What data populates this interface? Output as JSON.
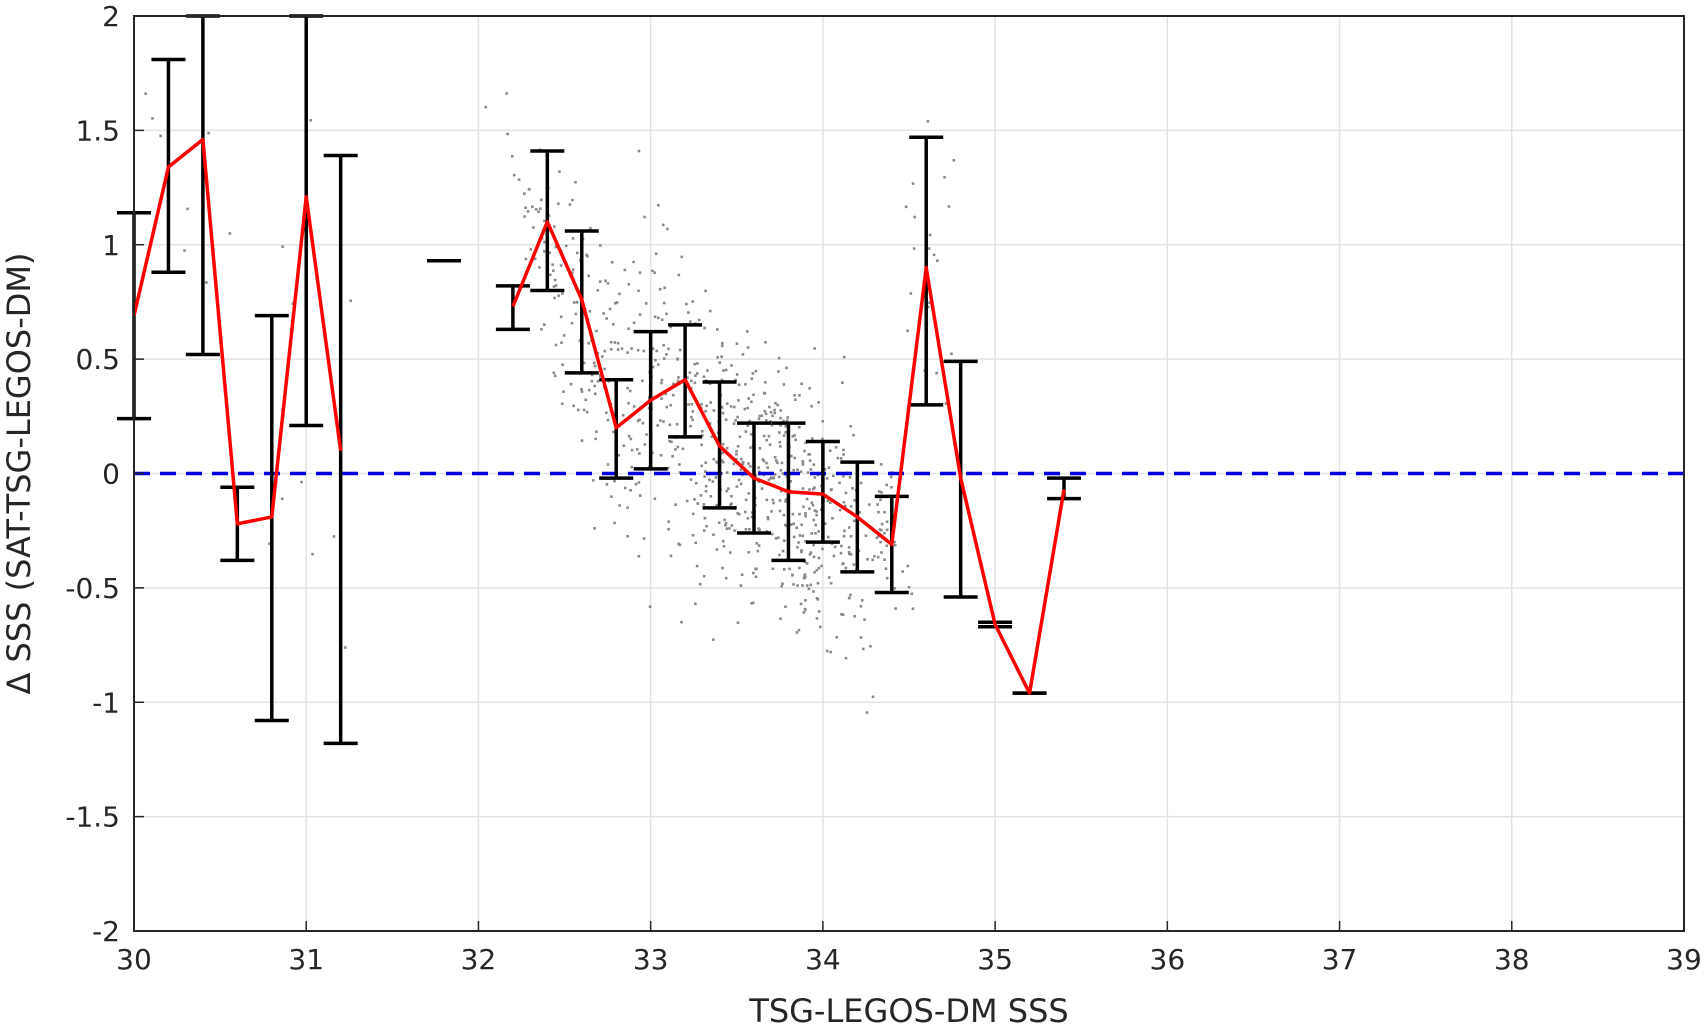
{
  "chart_data": {
    "type": "line",
    "title": "",
    "xlabel": "TSG-LEGOS-DM SSS",
    "ylabel": "Δ SSS (SAT-TSG-LEGOS-DM)",
    "xlim": [
      30,
      39
    ],
    "ylim": [
      -2,
      2
    ],
    "xticks": [
      30,
      31,
      32,
      33,
      34,
      35,
      36,
      37,
      38,
      39
    ],
    "xtick_labels": [
      "30",
      "31",
      "32",
      "33",
      "34",
      "35",
      "36",
      "37",
      "38",
      "39"
    ],
    "yticks": [
      -2,
      -1.5,
      -1,
      -0.5,
      0,
      0.5,
      1,
      1.5,
      2
    ],
    "ytick_labels": [
      "-2",
      "-1.5",
      "-1",
      "-0.5",
      "0",
      "0.5",
      "1",
      "1.5",
      "2"
    ],
    "grid": true,
    "colors": {
      "mean_line": "#ff0000",
      "error_bars": "#000000",
      "scatter": "#8a8a8a",
      "zero_line": "#0000e0",
      "grid": "#e3e3e3",
      "axis": "#262626"
    },
    "reference_line": {
      "y": 0,
      "style": "dashed"
    },
    "mean_line": [
      [
        30.0,
        0.69
      ],
      [
        30.2,
        1.34
      ],
      [
        30.4,
        1.46
      ],
      [
        30.6,
        -0.22
      ],
      [
        30.8,
        -0.19
      ],
      [
        31.0,
        1.21
      ],
      [
        31.2,
        0.1
      ],
      [
        32.2,
        0.73
      ],
      [
        32.4,
        1.1
      ],
      [
        32.6,
        0.76
      ],
      [
        32.8,
        0.2
      ],
      [
        33.0,
        0.32
      ],
      [
        33.2,
        0.41
      ],
      [
        33.4,
        0.12
      ],
      [
        33.6,
        -0.02
      ],
      [
        33.8,
        -0.08
      ],
      [
        34.0,
        -0.09
      ],
      [
        34.2,
        -0.19
      ],
      [
        34.4,
        -0.31
      ],
      [
        34.6,
        0.9
      ],
      [
        34.8,
        -0.02
      ],
      [
        35.0,
        -0.66
      ],
      [
        35.2,
        -0.96
      ],
      [
        35.4,
        -0.07
      ]
    ],
    "error_bars": [
      {
        "x": 30.0,
        "low": 0.24,
        "high": 1.14
      },
      {
        "x": 30.2,
        "low": 0.88,
        "high": 1.81
      },
      {
        "x": 30.4,
        "low": 0.52,
        "high": 2.0
      },
      {
        "x": 30.6,
        "low": -0.38,
        "high": -0.06
      },
      {
        "x": 30.8,
        "low": -1.08,
        "high": 0.69
      },
      {
        "x": 31.0,
        "low": 0.21,
        "high": 2.0
      },
      {
        "x": 31.2,
        "low": -1.18,
        "high": 1.39
      },
      {
        "x": 31.8,
        "low": 0.93,
        "high": 0.93
      },
      {
        "x": 32.2,
        "low": 0.63,
        "high": 0.82
      },
      {
        "x": 32.4,
        "low": 0.8,
        "high": 1.41
      },
      {
        "x": 32.6,
        "low": 0.44,
        "high": 1.06
      },
      {
        "x": 32.8,
        "low": -0.02,
        "high": 0.41
      },
      {
        "x": 33.0,
        "low": 0.02,
        "high": 0.62
      },
      {
        "x": 33.2,
        "low": 0.16,
        "high": 0.65
      },
      {
        "x": 33.4,
        "low": -0.15,
        "high": 0.4
      },
      {
        "x": 33.6,
        "low": -0.26,
        "high": 0.22
      },
      {
        "x": 33.8,
        "low": -0.38,
        "high": 0.22
      },
      {
        "x": 34.0,
        "low": -0.3,
        "high": 0.14
      },
      {
        "x": 34.2,
        "low": -0.43,
        "high": 0.05
      },
      {
        "x": 34.4,
        "low": -0.52,
        "high": -0.1
      },
      {
        "x": 34.6,
        "low": 0.3,
        "high": 1.47
      },
      {
        "x": 34.8,
        "low": -0.54,
        "high": 0.49
      },
      {
        "x": 35.0,
        "low": -0.67,
        "high": -0.65
      },
      {
        "x": 35.2,
        "low": -0.96,
        "high": -0.96
      },
      {
        "x": 35.4,
        "low": -0.11,
        "high": -0.02
      }
    ],
    "scatter_clouds": [
      {
        "cx": 32.3,
        "cy": 1.15,
        "sx": 0.1,
        "sy": 0.15,
        "n": 25
      },
      {
        "cx": 32.5,
        "cy": 0.8,
        "sx": 0.12,
        "sy": 0.25,
        "n": 70
      },
      {
        "cx": 32.8,
        "cy": 0.3,
        "sx": 0.12,
        "sy": 0.3,
        "n": 80
      },
      {
        "cx": 33.1,
        "cy": 0.3,
        "sx": 0.12,
        "sy": 0.35,
        "n": 110
      },
      {
        "cx": 33.4,
        "cy": 0.1,
        "sx": 0.12,
        "sy": 0.3,
        "n": 140
      },
      {
        "cx": 33.7,
        "cy": -0.05,
        "sx": 0.12,
        "sy": 0.28,
        "n": 150
      },
      {
        "cx": 33.9,
        "cy": -0.15,
        "sx": 0.12,
        "sy": 0.28,
        "n": 110
      },
      {
        "cx": 34.1,
        "cy": -0.2,
        "sx": 0.12,
        "sy": 0.25,
        "n": 80
      },
      {
        "cx": 34.35,
        "cy": -0.3,
        "sx": 0.08,
        "sy": 0.2,
        "n": 40
      },
      {
        "cx": 34.65,
        "cy": 1.0,
        "sx": 0.08,
        "sy": 0.3,
        "n": 20
      },
      {
        "cx": 30.3,
        "cy": 1.35,
        "sx": 0.12,
        "sy": 0.3,
        "n": 10
      },
      {
        "cx": 31.0,
        "cy": 0.3,
        "sx": 0.15,
        "sy": 0.6,
        "n": 10
      }
    ]
  }
}
